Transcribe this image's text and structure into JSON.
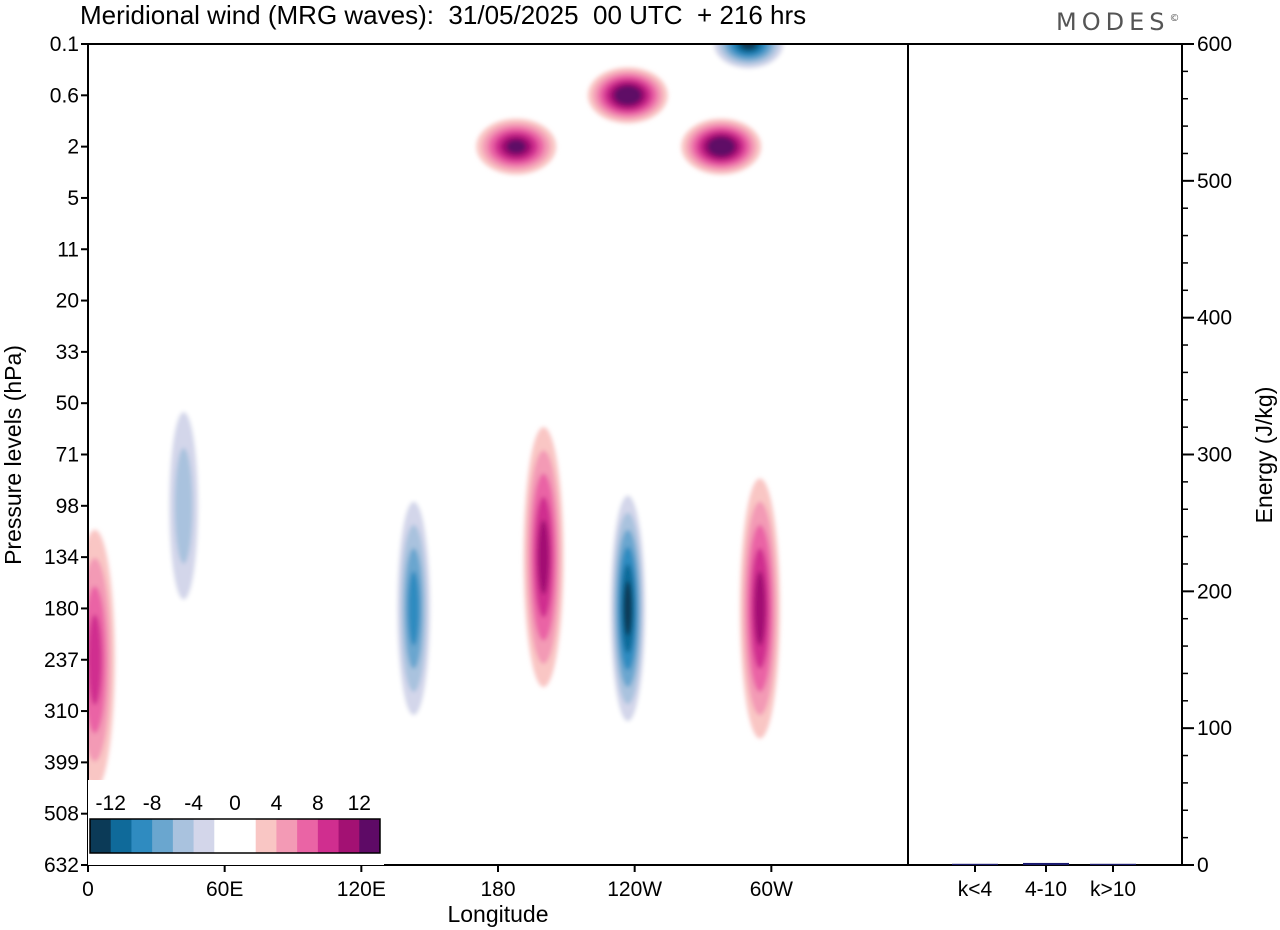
{
  "header": {
    "title": "Meridional wind (MRG waves):  31/05/2025  00 UTC  + 216 hrs",
    "brand": "MODES",
    "brand_mark": "©"
  },
  "chart_data": [
    {
      "type": "heatmap",
      "title": "Meridional wind (MRG waves):  31/05/2025  00 UTC  + 216 hrs",
      "xlabel": "Longitude",
      "ylabel": "Pressure levels (hPa)",
      "x_ticks": [
        "0",
        "60E",
        "120E",
        "180",
        "120W",
        "60W"
      ],
      "y_ticks": [
        "0.1",
        "0.6",
        "2",
        "5",
        "11",
        "20",
        "33",
        "50",
        "71",
        "98",
        "134",
        "180",
        "237",
        "310",
        "399",
        "508",
        "632"
      ],
      "legend": {
        "placement": "bottom-left",
        "labels": [
          "-12",
          "-8",
          "-4",
          "0",
          "4",
          "8",
          "12"
        ],
        "colors": [
          "#0b3a57",
          "#0f6a9a",
          "#2f8bc0",
          "#6aa6cf",
          "#a9c2de",
          "#d3d6ea",
          "#ffffff",
          "#ffffff",
          "#f9c6c4",
          "#f39ab5",
          "#ea64a5",
          "#d02e8f",
          "#a31173",
          "#5e0a66"
        ]
      },
      "features": [
        {
          "lon": 143,
          "level": 180,
          "value": -10
        },
        {
          "lon": 200,
          "level": 134,
          "value": 10
        },
        {
          "lon": 237,
          "level": 180,
          "value": -14
        },
        {
          "lon": 295,
          "level": 180,
          "value": 10
        },
        {
          "lon": 3,
          "level": 237,
          "value": 8
        },
        {
          "lon": 42,
          "level": 98,
          "value": -6
        },
        {
          "lon": 188,
          "level": 2,
          "value": 12
        },
        {
          "lon": 237,
          "level": 0.6,
          "value": 14
        },
        {
          "lon": 290,
          "level": 0.1,
          "value": -14
        },
        {
          "lon": 278,
          "level": 2,
          "value": 14
        }
      ]
    },
    {
      "type": "bar",
      "categories": [
        "k<4",
        "4-10",
        "k>10"
      ],
      "values": [
        0,
        1.5,
        0
      ],
      "ylabel": "Energy (J/kg)",
      "ylim": [
        0,
        600
      ],
      "y_ticks": [
        "0",
        "100",
        "200",
        "300",
        "400",
        "500",
        "600"
      ],
      "bar_color": "#1a1a6e"
    }
  ]
}
